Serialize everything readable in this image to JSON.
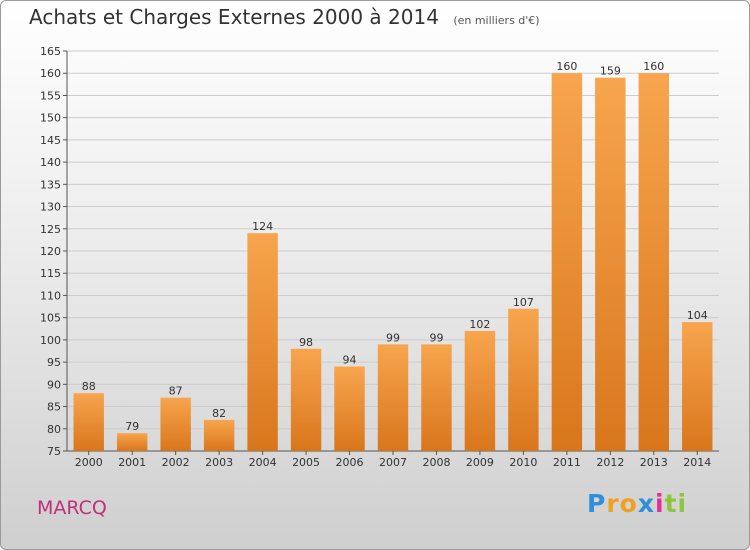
{
  "header": {
    "title": "Achats et Charges Externes 2000 à 2014",
    "subtitle": "(en milliers d'€)"
  },
  "place": "MARCQ",
  "brand": {
    "letters": [
      {
        "char": "P",
        "color": "#2f8fd8"
      },
      {
        "char": "r",
        "color": "#f0a020"
      },
      {
        "char": "o",
        "color": "#f0a020"
      },
      {
        "char": "x",
        "color": "#2f8fd8"
      },
      {
        "char": "i",
        "color": "#e0309a"
      },
      {
        "char": "t",
        "color": "#8cc63f"
      },
      {
        "char": "i",
        "color": "#8cc63f"
      }
    ]
  },
  "chart_data": {
    "type": "bar",
    "categories": [
      "2000",
      "2001",
      "2002",
      "2003",
      "2004",
      "2005",
      "2006",
      "2007",
      "2008",
      "2009",
      "2010",
      "2011",
      "2012",
      "2013",
      "2014"
    ],
    "values": [
      88,
      79,
      87,
      82,
      124,
      98,
      94,
      99,
      99,
      102,
      107,
      160,
      159,
      160,
      104
    ],
    "title": "Achats et Charges Externes 2000 à 2014",
    "xlabel": "",
    "ylabel": "",
    "ylim": [
      75,
      165
    ],
    "yticks": [
      75,
      80,
      85,
      90,
      95,
      100,
      105,
      110,
      115,
      120,
      125,
      130,
      135,
      140,
      145,
      150,
      155,
      160,
      165
    ],
    "grid": true,
    "legend": "none",
    "colors": {
      "bar_light": "#f7a54e",
      "bar_dark": "#d9761c",
      "grid": "#cccccc"
    }
  }
}
